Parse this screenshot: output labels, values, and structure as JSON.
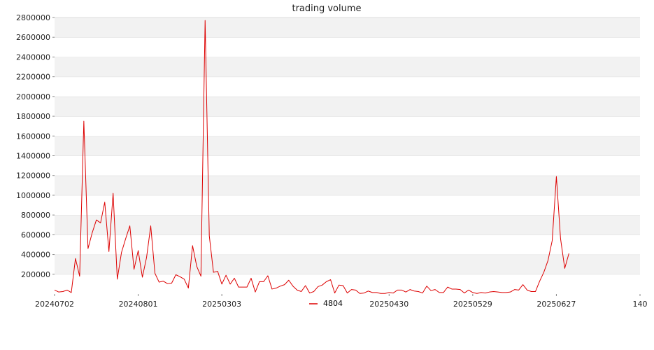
{
  "chart_data": {
    "type": "line",
    "title": "trading volume",
    "xlabel": "",
    "ylabel": "",
    "x_tick_labels": [
      "20240702",
      "20240801",
      "20250303",
      "20250430",
      "20250529",
      "20250627",
      "140"
    ],
    "x_tick_label_positions": [
      0,
      20,
      40,
      80,
      100,
      120,
      140
    ],
    "y_ticks": [
      200000,
      400000,
      600000,
      800000,
      1000000,
      1200000,
      1400000,
      1600000,
      1800000,
      2000000,
      2200000,
      2400000,
      2600000,
      2800000
    ],
    "xlim": [
      0,
      140
    ],
    "ylim": [
      0,
      2800000
    ],
    "grid": "horizontal bands",
    "legend_position": "bottom-center",
    "series": [
      {
        "name": "4804",
        "color": "#dd0000",
        "values": [
          40000,
          20000,
          25000,
          40000,
          15000,
          360000,
          180000,
          1750000,
          460000,
          620000,
          750000,
          720000,
          930000,
          430000,
          1020000,
          150000,
          420000,
          560000,
          690000,
          250000,
          440000,
          170000,
          370000,
          690000,
          210000,
          120000,
          130000,
          105000,
          110000,
          195000,
          175000,
          150000,
          60000,
          490000,
          280000,
          180000,
          2770000,
          590000,
          220000,
          230000,
          100000,
          190000,
          100000,
          160000,
          70000,
          70000,
          70000,
          160000,
          20000,
          125000,
          125000,
          185000,
          50000,
          60000,
          80000,
          95000,
          140000,
          80000,
          40000,
          25000,
          85000,
          10000,
          25000,
          75000,
          90000,
          125000,
          145000,
          10000,
          90000,
          85000,
          10000,
          45000,
          40000,
          5000,
          10000,
          30000,
          15000,
          15000,
          5000,
          5000,
          15000,
          10000,
          40000,
          40000,
          20000,
          45000,
          30000,
          25000,
          10000,
          80000,
          35000,
          45000,
          15000,
          15000,
          70000,
          50000,
          50000,
          45000,
          10000,
          40000,
          15000,
          5000,
          15000,
          10000,
          20000,
          25000,
          20000,
          15000,
          15000,
          20000,
          45000,
          40000,
          95000,
          40000,
          25000,
          25000,
          130000,
          220000,
          340000,
          540000,
          1190000,
          560000,
          260000,
          410000
        ]
      }
    ]
  }
}
